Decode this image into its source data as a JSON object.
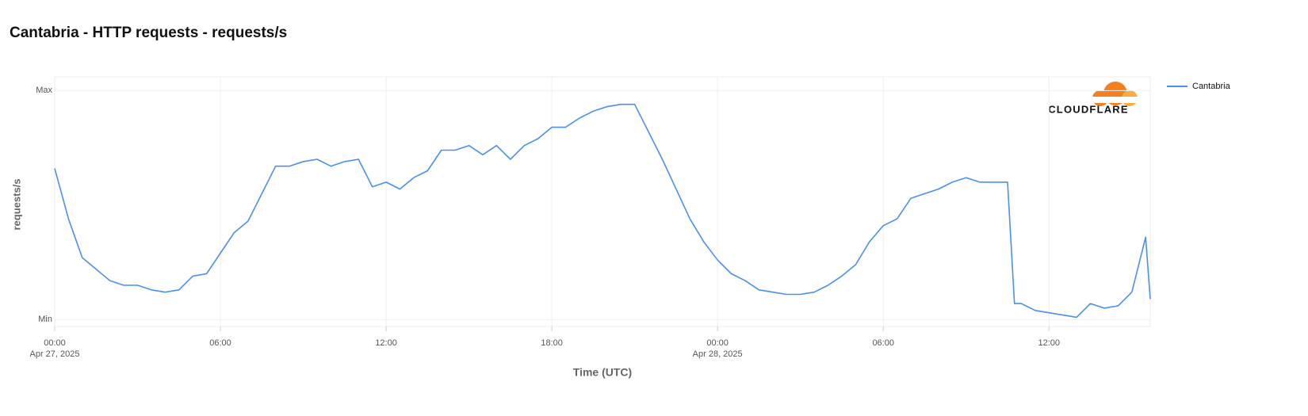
{
  "chart_data": {
    "type": "line",
    "title": "Cantabria - HTTP requests - requests/s",
    "x_label": "Time (UTC)",
    "y_label": "requests/s",
    "logo_text": "CLOUDFLARE",
    "x": [
      "2025-04-27T00:00",
      "2025-04-27T00:30",
      "2025-04-27T01:00",
      "2025-04-27T01:30",
      "2025-04-27T02:00",
      "2025-04-27T02:30",
      "2025-04-27T03:00",
      "2025-04-27T03:30",
      "2025-04-27T04:00",
      "2025-04-27T04:30",
      "2025-04-27T05:00",
      "2025-04-27T05:30",
      "2025-04-27T06:00",
      "2025-04-27T06:30",
      "2025-04-27T07:00",
      "2025-04-27T07:30",
      "2025-04-27T08:00",
      "2025-04-27T08:30",
      "2025-04-27T09:00",
      "2025-04-27T09:30",
      "2025-04-27T10:00",
      "2025-04-27T10:30",
      "2025-04-27T11:00",
      "2025-04-27T11:30",
      "2025-04-27T12:00",
      "2025-04-27T12:30",
      "2025-04-27T13:00",
      "2025-04-27T13:30",
      "2025-04-27T14:00",
      "2025-04-27T14:30",
      "2025-04-27T15:00",
      "2025-04-27T15:30",
      "2025-04-27T16:00",
      "2025-04-27T16:30",
      "2025-04-27T17:00",
      "2025-04-27T17:30",
      "2025-04-27T18:00",
      "2025-04-27T18:30",
      "2025-04-27T19:00",
      "2025-04-27T19:30",
      "2025-04-27T20:00",
      "2025-04-27T20:30",
      "2025-04-27T21:00",
      "2025-04-27T21:30",
      "2025-04-27T22:00",
      "2025-04-27T22:30",
      "2025-04-27T23:00",
      "2025-04-27T23:30",
      "2025-04-28T00:00",
      "2025-04-28T00:30",
      "2025-04-28T01:00",
      "2025-04-28T01:30",
      "2025-04-28T02:00",
      "2025-04-28T02:30",
      "2025-04-28T03:00",
      "2025-04-28T03:30",
      "2025-04-28T04:00",
      "2025-04-28T04:30",
      "2025-04-28T05:00",
      "2025-04-28T05:30",
      "2025-04-28T06:00",
      "2025-04-28T06:30",
      "2025-04-28T07:00",
      "2025-04-28T07:30",
      "2025-04-28T08:00",
      "2025-04-28T08:30",
      "2025-04-28T09:00",
      "2025-04-28T09:30",
      "2025-04-28T10:00",
      "2025-04-28T10:30",
      "2025-04-28T10:45",
      "2025-04-28T11:00",
      "2025-04-28T11:30",
      "2025-04-28T12:00",
      "2025-04-28T12:30",
      "2025-04-28T13:00",
      "2025-04-28T13:30",
      "2025-04-28T14:00",
      "2025-04-28T14:30",
      "2025-04-28T15:00",
      "2025-04-28T15:30",
      "2025-04-28T15:40"
    ],
    "series": [
      {
        "name": "Cantabria",
        "color": "#4a90f0",
        "values": [
          66,
          44,
          27,
          22,
          17,
          15,
          15,
          13,
          12,
          13,
          19,
          20,
          29,
          38,
          43,
          55,
          67,
          67,
          69,
          70,
          67,
          69,
          70,
          58,
          60,
          57,
          62,
          65,
          74,
          74,
          76,
          72,
          76,
          70,
          76,
          79,
          84,
          84,
          88,
          91,
          93,
          94,
          94,
          82,
          70,
          57,
          44,
          34,
          26,
          20,
          17,
          13,
          12,
          11,
          11,
          12,
          15,
          19,
          24,
          34,
          41,
          44,
          53,
          55,
          57,
          60,
          62,
          60,
          60,
          60,
          7,
          7,
          4,
          3,
          2,
          1,
          7,
          5,
          6,
          12,
          36,
          9
        ]
      }
    ],
    "xlim": [
      "2025-04-27T00:00",
      "2025-04-28T15:40"
    ],
    "xticks": [
      {
        "value": "2025-04-27T00:00",
        "label": "00:00",
        "date_label": "Apr 27, 2025"
      },
      {
        "value": "2025-04-27T06:00",
        "label": "06:00"
      },
      {
        "value": "2025-04-27T12:00",
        "label": "12:00"
      },
      {
        "value": "2025-04-27T18:00",
        "label": "18:00"
      },
      {
        "value": "2025-04-28T00:00",
        "label": "00:00",
        "date_label": "Apr 28, 2025"
      },
      {
        "value": "2025-04-28T06:00",
        "label": "06:00"
      },
      {
        "value": "2025-04-28T12:00",
        "label": "12:00"
      }
    ],
    "ylim": [
      -3,
      106
    ],
    "yticks": [
      {
        "value": 0,
        "label": "Min"
      },
      {
        "value": 100,
        "label": "Max"
      }
    ],
    "grid": true,
    "legend": "right"
  }
}
